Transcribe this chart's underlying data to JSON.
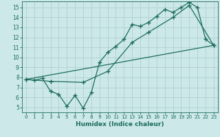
{
  "bg_color": "#cce8e8",
  "grid_color": "#b0d0d0",
  "line_color": "#1a6b5a",
  "xlabel": "Humidex (Indice chaleur)",
  "xlim": [
    -0.5,
    23.5
  ],
  "ylim": [
    4.5,
    15.6
  ],
  "xticks": [
    0,
    1,
    2,
    3,
    4,
    5,
    6,
    7,
    8,
    9,
    10,
    11,
    12,
    13,
    14,
    15,
    16,
    17,
    18,
    19,
    20,
    21,
    22,
    23
  ],
  "yticks": [
    5,
    6,
    7,
    8,
    9,
    10,
    11,
    12,
    13,
    14,
    15
  ],
  "line1_x": [
    0,
    1,
    2,
    3,
    4,
    5,
    6,
    7,
    8,
    9,
    10,
    11,
    12,
    13,
    14,
    15,
    16,
    17,
    18,
    19,
    20,
    21,
    22,
    23
  ],
  "line1_y": [
    7.8,
    7.7,
    7.9,
    6.6,
    6.3,
    5.1,
    6.2,
    4.9,
    6.5,
    9.5,
    10.5,
    11.1,
    11.8,
    13.3,
    13.1,
    13.5,
    14.1,
    14.8,
    14.5,
    15.0,
    15.5,
    15.0,
    11.8,
    11.2
  ],
  "line2_x": [
    0,
    3,
    7,
    10,
    13,
    15,
    18,
    20,
    23
  ],
  "line2_y": [
    7.8,
    7.6,
    7.5,
    8.6,
    11.5,
    12.5,
    14.0,
    15.2,
    11.2
  ],
  "line3_x": [
    0,
    23
  ],
  "line3_y": [
    7.8,
    11.2
  ]
}
